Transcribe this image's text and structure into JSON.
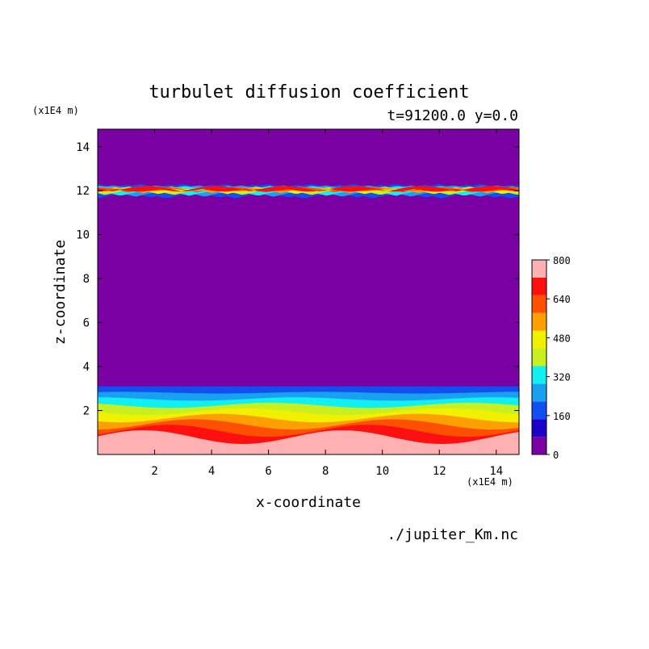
{
  "chart_data": {
    "type": "heatmap",
    "title": "turbulet diffusion coefficient",
    "subtitle": "t=91200.0 y=0.0",
    "xlabel": "x-coordinate",
    "ylabel": "z-coordinate",
    "x_unit": "(x1E4 m)",
    "z_unit": "(x1E4 m)",
    "xlim": [
      0,
      14.8
    ],
    "ylim": [
      0,
      14.8
    ],
    "x_ticks": [
      "2",
      "4",
      "6",
      "8",
      "10",
      "12",
      "14"
    ],
    "y_ticks": [
      "2",
      "4",
      "6",
      "8",
      "10",
      "12",
      "14"
    ],
    "colorbar": {
      "levels": [
        0,
        80,
        160,
        240,
        320,
        400,
        480,
        560,
        640,
        720,
        800
      ],
      "labels": [
        "0",
        "160",
        "320",
        "480",
        "640",
        "800"
      ],
      "colors": [
        "#7a00a3",
        "#1a00c8",
        "#1050f0",
        "#1aa0f0",
        "#10f0f0",
        "#c8f020",
        "#f0f000",
        "#ffa000",
        "#ff5000",
        "#ff1010",
        "#ffb0b0"
      ]
    },
    "features": [
      {
        "name": "upper turbulent layer",
        "z_top": 12.3,
        "z_bottom": 11.5,
        "max_level": 720
      },
      {
        "name": "lower turbulent layer",
        "z_top": 3.1,
        "z_bottom": 0,
        "max_level": 800
      }
    ],
    "background_value": 0
  },
  "footer": {
    "source": "./jupiter_Km.nc"
  }
}
